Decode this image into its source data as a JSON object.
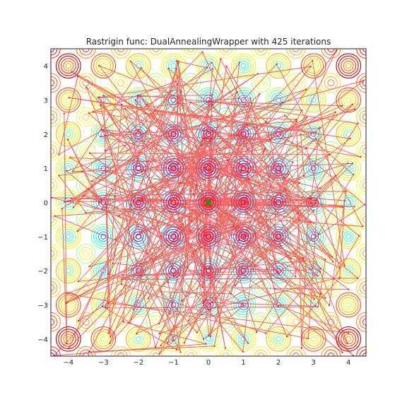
{
  "chart_data": {
    "type": "contour",
    "title": "Rastrigin func: DualAnnealingWrapper with 425 iterations",
    "xlabel": "",
    "ylabel": "",
    "xlim": [
      -4.5,
      4.5
    ],
    "ylim": [
      -4.5,
      4.5
    ],
    "xticks": [
      -4,
      -3,
      -2,
      -1,
      0,
      1,
      2,
      3,
      4
    ],
    "yticks": [
      -4,
      -3,
      -2,
      -1,
      0,
      1,
      2,
      3,
      4
    ],
    "xtick_labels": [
      "−4",
      "−3",
      "−2",
      "−1",
      "0",
      "1",
      "2",
      "3",
      "4"
    ],
    "ytick_labels": [
      "−4",
      "−3",
      "−2",
      "−1",
      "0",
      "1",
      "2",
      "3",
      "4"
    ],
    "grid": false,
    "colormap": "jet",
    "function": "rastrigin",
    "iterations": 425,
    "path_color": "#ff2020",
    "best_point": {
      "x": 0,
      "y": 0,
      "color": "#1a9a1a"
    }
  }
}
